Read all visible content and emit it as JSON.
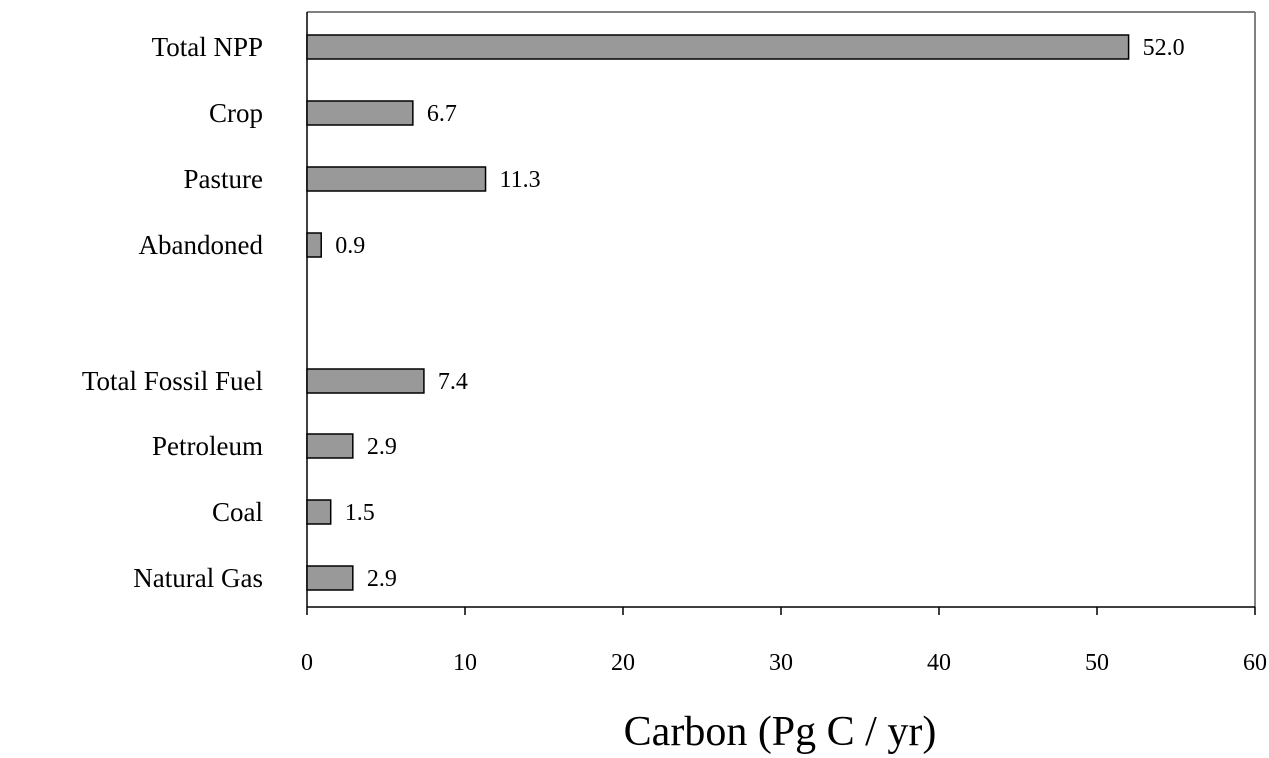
{
  "chart_data": {
    "type": "bar",
    "orientation": "horizontal",
    "categories": [
      "Total NPP",
      "Crop",
      "Pasture",
      "Abandoned",
      "Total Fossil Fuel",
      "Petroleum",
      "Coal",
      "Natural Gas"
    ],
    "values": [
      52.0,
      6.7,
      11.3,
      0.9,
      7.4,
      2.9,
      1.5,
      2.9
    ],
    "value_labels": [
      "52.0",
      "6.7",
      "11.3",
      "0.9",
      "7.4",
      "2.9",
      "1.5",
      "2.9"
    ],
    "groups": [
      [
        "Total NPP",
        "Crop",
        "Pasture",
        "Abandoned"
      ],
      [
        "Total Fossil Fuel",
        "Petroleum",
        "Coal",
        "Natural Gas"
      ]
    ],
    "xlabel": "Carbon (Pg C / yr)",
    "ylabel": "",
    "xlim": [
      0,
      60
    ],
    "xticks": [
      "0",
      "10",
      "20",
      "30",
      "40",
      "50",
      "60"
    ],
    "grid": false,
    "legend": "none",
    "colors": {
      "bar_fill": "#999999",
      "bar_stroke": "#000000",
      "frame": "#808080",
      "axis": "#000000"
    }
  }
}
